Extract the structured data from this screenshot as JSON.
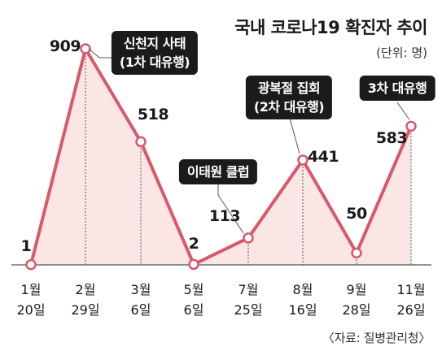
{
  "title": "국내 코로나19 확진자 추이",
  "unit": "(단위: 명)",
  "source": "〈자료: 질병관리청〉",
  "colors": {
    "line": "#d9596a",
    "fill": "#fbe6e6",
    "marker_fill": "#ffffff",
    "annotation_bg": "#1b1b1b"
  },
  "chart_data": {
    "type": "area",
    "categories": [
      [
        "1월",
        "20일"
      ],
      [
        "2월",
        "29일"
      ],
      [
        "3월",
        "6일"
      ],
      [
        "5월",
        "6일"
      ],
      [
        "7월",
        "25일"
      ],
      [
        "8월",
        "16일"
      ],
      [
        "9월",
        "28일"
      ],
      [
        "11월",
        "26일"
      ]
    ],
    "values": [
      1,
      909,
      518,
      2,
      113,
      441,
      50,
      583
    ],
    "value_labels": [
      "1",
      "909",
      "518",
      "2",
      "113",
      "441",
      "50",
      "583"
    ],
    "ylim": [
      0,
      909
    ],
    "annotations": [
      {
        "index": 1,
        "lines": [
          "신천지 사태",
          "(1차 대유행)"
        ]
      },
      {
        "index": 4,
        "lines": [
          "이태원 클럽"
        ]
      },
      {
        "index": 5,
        "lines": [
          "광복절 집회",
          "(2차 대유행)"
        ]
      },
      {
        "index": 7,
        "lines": [
          "3차 대유행"
        ]
      }
    ],
    "grid": false,
    "legend": "none"
  }
}
